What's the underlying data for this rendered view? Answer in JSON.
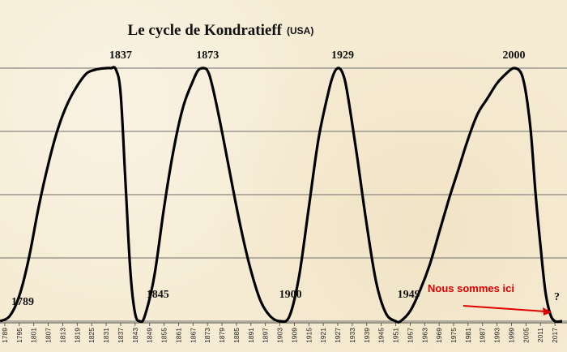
{
  "chart_data": {
    "type": "line",
    "title": "Le cycle de Kondratieff",
    "subtitle": "(USA)",
    "x_ticks": [
      1789,
      1795,
      1801,
      1807,
      1813,
      1819,
      1825,
      1831,
      1837,
      1843,
      1849,
      1855,
      1861,
      1867,
      1873,
      1879,
      1885,
      1891,
      1897,
      1903,
      1909,
      1915,
      1921,
      1927,
      1933,
      1939,
      1945,
      1951,
      1957,
      1963,
      1969,
      1975,
      1981,
      1987,
      1993,
      1999,
      2005,
      2011,
      2017
    ],
    "xlim": [
      1787,
      2022
    ],
    "ylim": [
      0,
      1
    ],
    "grid": "horizontal",
    "series": [
      {
        "points": [
          [
            1787,
            0.0
          ],
          [
            1791,
            0.02
          ],
          [
            1795,
            0.1
          ],
          [
            1799,
            0.25
          ],
          [
            1803,
            0.45
          ],
          [
            1807,
            0.62
          ],
          [
            1811,
            0.76
          ],
          [
            1815,
            0.86
          ],
          [
            1819,
            0.93
          ],
          [
            1823,
            0.98
          ],
          [
            1827,
            0.995
          ],
          [
            1831,
            1.0
          ],
          [
            1833,
            1.0
          ],
          [
            1835,
            0.995
          ],
          [
            1837,
            0.9
          ],
          [
            1839,
            0.55
          ],
          [
            1841,
            0.2
          ],
          [
            1843,
            0.03
          ],
          [
            1845,
            0.0
          ],
          [
            1847,
            0.02
          ],
          [
            1851,
            0.18
          ],
          [
            1855,
            0.45
          ],
          [
            1859,
            0.68
          ],
          [
            1863,
            0.85
          ],
          [
            1867,
            0.95
          ],
          [
            1869,
            0.99
          ],
          [
            1871,
            1.0
          ],
          [
            1873,
            0.99
          ],
          [
            1875,
            0.93
          ],
          [
            1879,
            0.75
          ],
          [
            1883,
            0.55
          ],
          [
            1887,
            0.36
          ],
          [
            1891,
            0.2
          ],
          [
            1895,
            0.08
          ],
          [
            1899,
            0.02
          ],
          [
            1903,
            0.0
          ],
          [
            1907,
            0.02
          ],
          [
            1911,
            0.18
          ],
          [
            1915,
            0.45
          ],
          [
            1919,
            0.72
          ],
          [
            1923,
            0.9
          ],
          [
            1925,
            0.97
          ],
          [
            1927,
            1.0
          ],
          [
            1929,
            0.98
          ],
          [
            1931,
            0.9
          ],
          [
            1935,
            0.65
          ],
          [
            1939,
            0.38
          ],
          [
            1943,
            0.15
          ],
          [
            1947,
            0.03
          ],
          [
            1951,
            0.0
          ],
          [
            1953,
            0.0
          ],
          [
            1957,
            0.04
          ],
          [
            1961,
            0.12
          ],
          [
            1965,
            0.22
          ],
          [
            1969,
            0.35
          ],
          [
            1973,
            0.48
          ],
          [
            1977,
            0.6
          ],
          [
            1981,
            0.72
          ],
          [
            1985,
            0.82
          ],
          [
            1989,
            0.88
          ],
          [
            1993,
            0.94
          ],
          [
            1997,
            0.98
          ],
          [
            2000,
            1.0
          ],
          [
            2003,
            0.98
          ],
          [
            2005,
            0.9
          ],
          [
            2007,
            0.75
          ],
          [
            2009,
            0.5
          ],
          [
            2011,
            0.3
          ],
          [
            2013,
            0.12
          ],
          [
            2015,
            0.03
          ],
          [
            2017,
            0.0
          ],
          [
            2020,
            0.0
          ]
        ]
      }
    ],
    "annotations": [
      {
        "text": "1837",
        "x": 1837,
        "y": 1.0,
        "anchor": "peak"
      },
      {
        "text": "1873",
        "x": 1873,
        "y": 1.0,
        "anchor": "peak"
      },
      {
        "text": "1929",
        "x": 1929,
        "y": 1.0,
        "anchor": "peak"
      },
      {
        "text": "2000",
        "x": 2000,
        "y": 1.0,
        "anchor": "peak"
      },
      {
        "text": "1789",
        "x": 1789,
        "y": 0.0,
        "anchor": "trough"
      },
      {
        "text": "1845",
        "x": 1845,
        "y": 0.0,
        "anchor": "trough"
      },
      {
        "text": "1900",
        "x": 1900,
        "y": 0.0,
        "anchor": "trough"
      },
      {
        "text": "1949",
        "x": 1949,
        "y": 0.0,
        "anchor": "trough"
      }
    ],
    "note": {
      "text": "Nous sommes ici",
      "color": "#e00000",
      "arrow_target_x": 2017
    },
    "question_mark": "?",
    "colors": {
      "background": "#f6ecd4",
      "line": "#000000",
      "grid": "#6e6e6e",
      "note": "#e00000"
    }
  }
}
